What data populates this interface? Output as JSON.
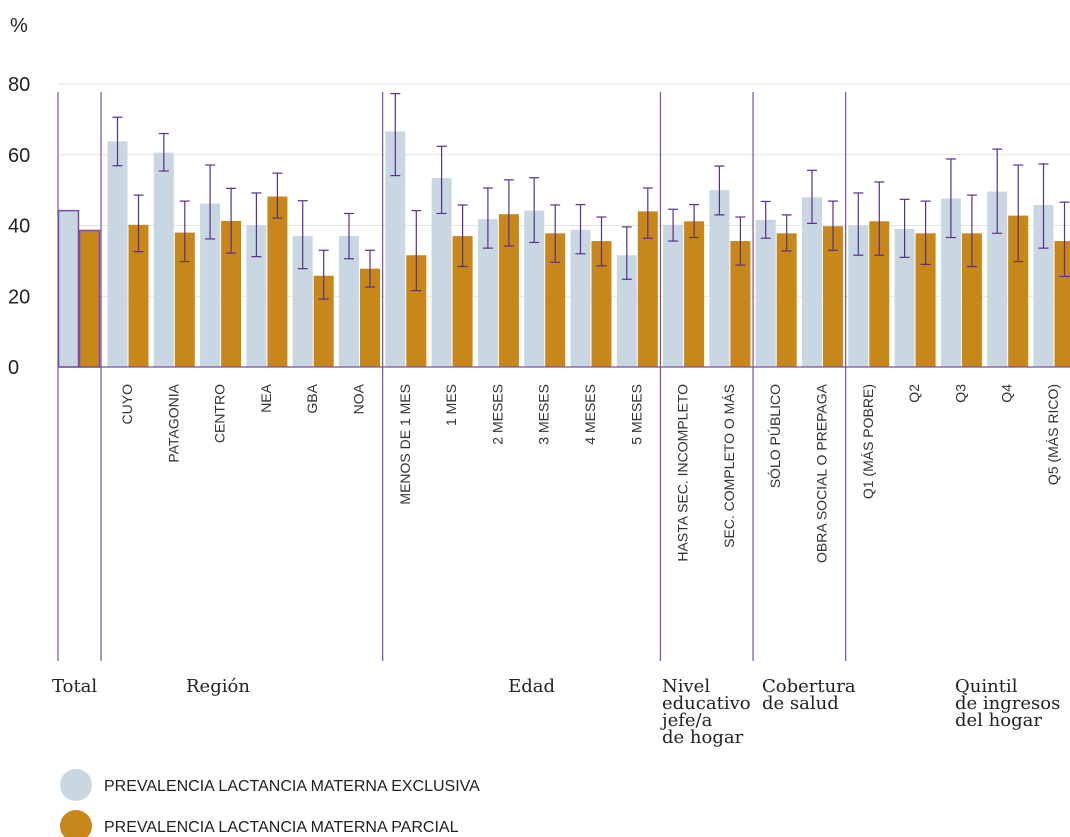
{
  "chart_data": {
    "type": "bar",
    "unit_label": "%",
    "ylim": [
      0,
      80
    ],
    "yticks": [
      "0",
      "20",
      "40",
      "60",
      "80"
    ],
    "grid": true,
    "legend_position": "bottom-left",
    "colors": {
      "exclusiva": "#c8d7e1",
      "parcial": "#c8871a",
      "error_bar": "#5a2f8a",
      "separator": "#7b4fa0",
      "grid": "#e2e2e2"
    },
    "series": [
      {
        "name": "PREVALENCIA LACTANCIA MATERNA EXCLUSIVA",
        "key": "exclusiva"
      },
      {
        "name": "PREVALENCIA LACTANCIA MATERNA PARCIAL",
        "key": "parcial"
      }
    ],
    "categories": [
      {
        "label": "",
        "exclusiva": 44.2,
        "exclusiva_ci": [
          39.6,
          48.8
        ],
        "parcial": 38.6,
        "parcial_ci": [
          34.9,
          42.4
        ]
      },
      {
        "label": "CUYO",
        "exclusiva": 63.8,
        "exclusiva_ci": [
          56.9,
          70.6
        ],
        "parcial": 40.2,
        "parcial_ci": [
          32.6,
          48.6
        ]
      },
      {
        "label": "PATAGONIA",
        "exclusiva": 60.6,
        "exclusiva_ci": [
          55.4,
          66.0
        ],
        "parcial": 38.0,
        "parcial_ci": [
          29.8,
          46.9
        ]
      },
      {
        "label": "CENTRO",
        "exclusiva": 46.2,
        "exclusiva_ci": [
          36.2,
          57.1
        ],
        "parcial": 41.3,
        "parcial_ci": [
          32.2,
          50.5
        ]
      },
      {
        "label": "NEA",
        "exclusiva": 40.0,
        "exclusiva_ci": [
          31.2,
          49.2
        ],
        "parcial": 48.2,
        "parcial_ci": [
          42.1,
          54.8
        ]
      },
      {
        "label": "GBA",
        "exclusiva": 37.0,
        "exclusiva_ci": [
          27.8,
          47.0
        ],
        "parcial": 25.8,
        "parcial_ci": [
          19.2,
          33.0
        ]
      },
      {
        "label": "NOA",
        "exclusiva": 37.0,
        "exclusiva_ci": [
          30.6,
          43.4
        ],
        "parcial": 27.8,
        "parcial_ci": [
          22.6,
          33.0
        ]
      },
      {
        "label": "MENOS DE 1 MES",
        "exclusiva": 66.6,
        "exclusiva_ci": [
          54.1,
          77.3
        ],
        "parcial": 31.6,
        "parcial_ci": [
          21.6,
          44.2
        ]
      },
      {
        "label": "1 MES",
        "exclusiva": 53.4,
        "exclusiva_ci": [
          43.4,
          62.4
        ],
        "parcial": 37.0,
        "parcial_ci": [
          28.4,
          45.8
        ]
      },
      {
        "label": "2 MESES",
        "exclusiva": 41.8,
        "exclusiva_ci": [
          33.6,
          50.6
        ],
        "parcial": 43.2,
        "parcial_ci": [
          34.2,
          52.9
        ]
      },
      {
        "label": "3 MESES",
        "exclusiva": 44.2,
        "exclusiva_ci": [
          35.2,
          53.5
        ],
        "parcial": 37.8,
        "parcial_ci": [
          29.6,
          45.8
        ]
      },
      {
        "label": "4 MESES",
        "exclusiva": 38.8,
        "exclusiva_ci": [
          32.0,
          45.9
        ],
        "parcial": 35.6,
        "parcial_ci": [
          28.6,
          42.4
        ]
      },
      {
        "label": "5 MESES",
        "exclusiva": 31.6,
        "exclusiva_ci": [
          24.8,
          39.6
        ],
        "parcial": 44.0,
        "parcial_ci": [
          36.4,
          50.6
        ]
      },
      {
        "label": "HASTA SEC. INCOMPLETO",
        "exclusiva": 40.2,
        "exclusiva_ci": [
          35.6,
          44.6
        ],
        "parcial": 41.2,
        "parcial_ci": [
          36.6,
          45.9
        ]
      },
      {
        "label": "SEC. COMPLETO O MÁS",
        "exclusiva": 50.0,
        "exclusiva_ci": [
          43.0,
          56.8
        ],
        "parcial": 35.6,
        "parcial_ci": [
          28.8,
          42.4
        ]
      },
      {
        "label": "SÓLO PÚBLICO",
        "exclusiva": 41.6,
        "exclusiva_ci": [
          36.4,
          46.8
        ],
        "parcial": 37.8,
        "parcial_ci": [
          32.8,
          43.0
        ]
      },
      {
        "label": "OBRA SOCIAL O PREPAGA",
        "exclusiva": 48.0,
        "exclusiva_ci": [
          40.6,
          55.6
        ],
        "parcial": 39.8,
        "parcial_ci": [
          33.0,
          46.9
        ]
      },
      {
        "label": "Q1 (MÁS POBRE)",
        "exclusiva": 40.0,
        "exclusiva_ci": [
          31.6,
          49.2
        ],
        "parcial": 41.2,
        "parcial_ci": [
          31.6,
          52.3
        ]
      },
      {
        "label": "Q2",
        "exclusiva": 39.0,
        "exclusiva_ci": [
          31.0,
          47.4
        ],
        "parcial": 37.8,
        "parcial_ci": [
          29.0,
          46.9
        ]
      },
      {
        "label": "Q3",
        "exclusiva": 47.6,
        "exclusiva_ci": [
          36.6,
          58.8
        ],
        "parcial": 37.8,
        "parcial_ci": [
          28.4,
          48.6
        ]
      },
      {
        "label": "Q4",
        "exclusiva": 49.6,
        "exclusiva_ci": [
          37.8,
          61.6
        ],
        "parcial": 42.8,
        "parcial_ci": [
          29.8,
          57.1
        ]
      },
      {
        "label": "Q5 (MÁS RICO)",
        "exclusiva": 45.8,
        "exclusiva_ci": [
          33.6,
          57.4
        ],
        "parcial": 35.6,
        "parcial_ci": [
          25.6,
          46.6
        ]
      }
    ],
    "groups": [
      {
        "lines": [
          "Total"
        ],
        "from": 0,
        "to": 0
      },
      {
        "lines": [
          "Región"
        ],
        "from": 1,
        "to": 6
      },
      {
        "lines": [
          "Edad"
        ],
        "from": 7,
        "to": 12
      },
      {
        "lines": [
          "Nivel",
          "educativo",
          "jefe/a",
          "de hogar"
        ],
        "from": 13,
        "to": 14
      },
      {
        "lines": [
          "Cobertura",
          "de salud"
        ],
        "from": 15,
        "to": 16
      },
      {
        "lines": [
          "Quintil",
          "de ingresos",
          "del hogar"
        ],
        "from": 17,
        "to": 21
      }
    ]
  }
}
